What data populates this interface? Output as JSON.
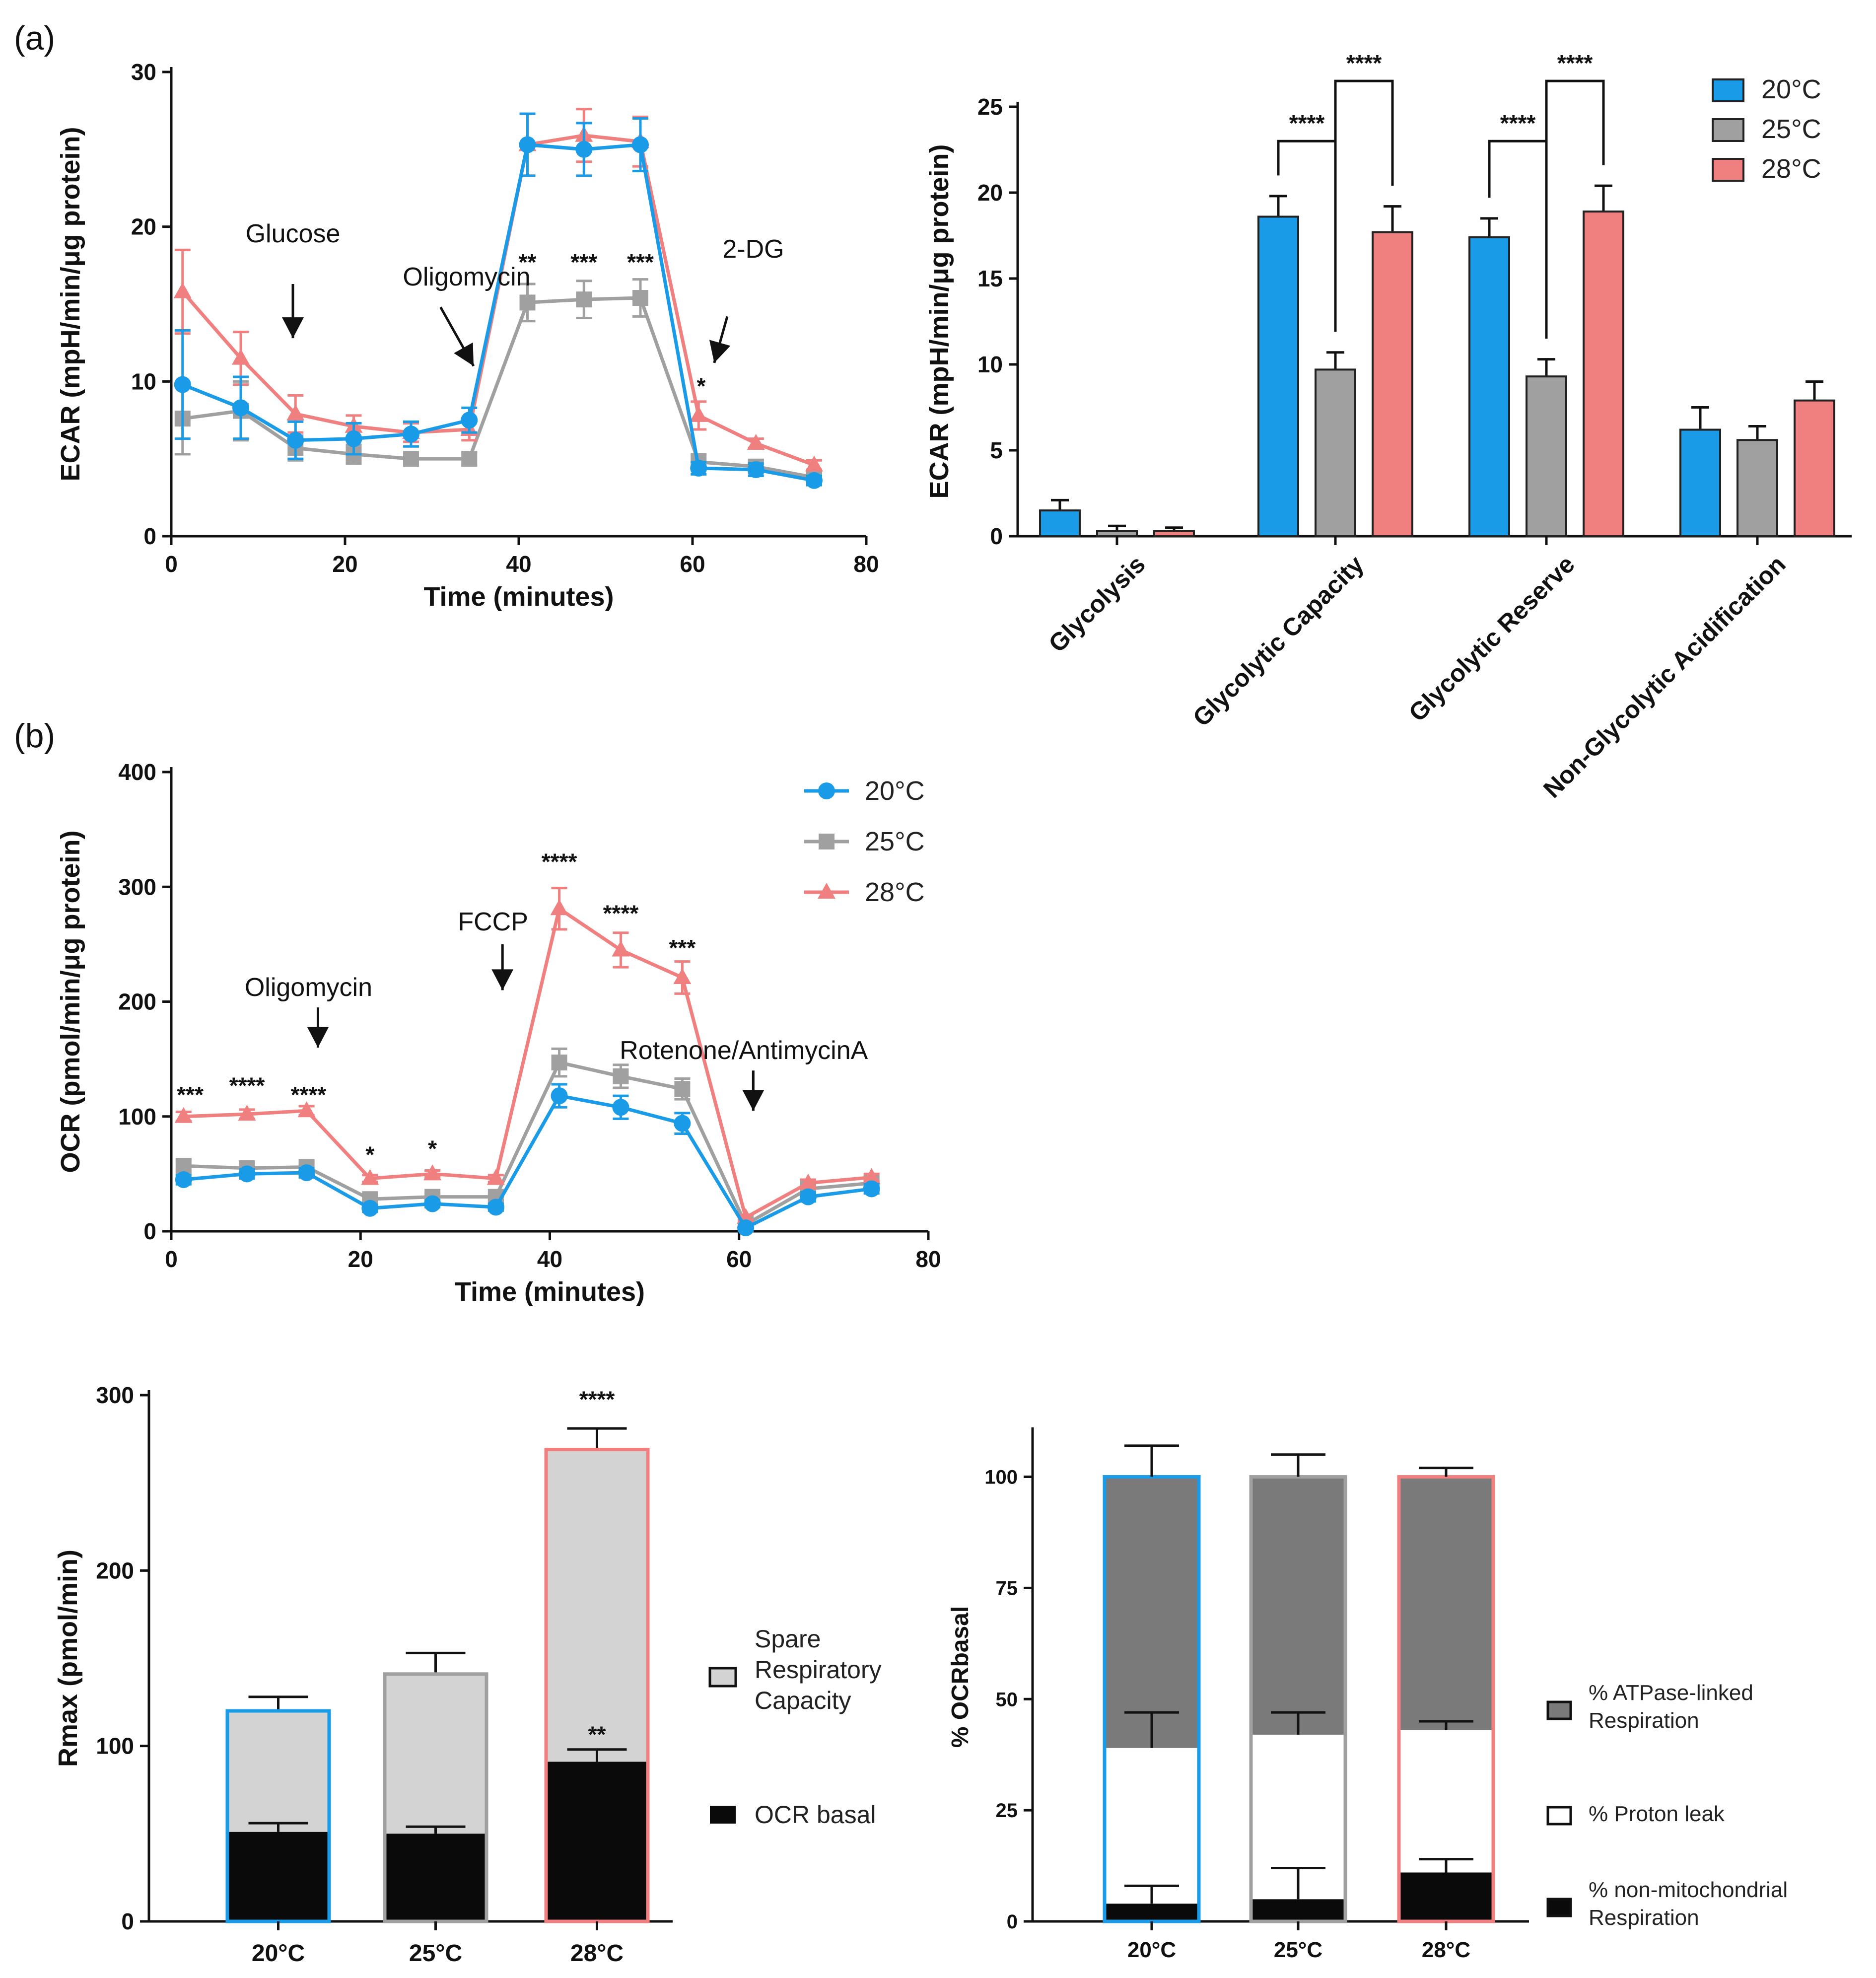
{
  "panel_labels": {
    "a": "(a)",
    "b": "(b)"
  },
  "colors": {
    "t20": "#1a9be8",
    "t25": "#a0a0a0",
    "t28": "#f08080",
    "black": "#0a0a0a",
    "light": "#d3d3d3",
    "dark": "#7a7a7a"
  },
  "legend": {
    "t20": "20°C",
    "t25": "25°C",
    "t28": "28°C"
  },
  "chart_data": [
    {
      "id": "ecar_time",
      "type": "line",
      "title": "",
      "xlabel": "Time (minutes)",
      "ylabel": "ECAR (mpH/min/μg protein)",
      "xlim": [
        0,
        80
      ],
      "ylim": [
        0,
        30
      ],
      "xticks": [
        0,
        20,
        40,
        60,
        80
      ],
      "yticks": [
        0,
        10,
        20,
        30
      ],
      "x": [
        1.3,
        8,
        14.3,
        21,
        27.6,
        34.3,
        41,
        47.5,
        54,
        60.7,
        67.3,
        74
      ],
      "series": [
        {
          "name": "20°C",
          "values": [
            9.8,
            8.3,
            6.2,
            6.3,
            6.6,
            7.5,
            25.3,
            25,
            25.3,
            4.4,
            4.3,
            3.6
          ],
          "errors": [
            3.5,
            2,
            1.2,
            1,
            0.8,
            0.8,
            2,
            1.7,
            1.7,
            0.4,
            0.4,
            0.3
          ]
        },
        {
          "name": "25°C",
          "values": [
            7.6,
            8.1,
            5.7,
            5.3,
            5,
            5,
            15.1,
            15.3,
            15.4,
            4.8,
            4.5,
            3.8
          ],
          "errors": [
            2.3,
            1.9,
            0.8,
            0.6,
            0.4,
            0.4,
            1.2,
            1.2,
            1.2,
            0.5,
            0.4,
            0.3
          ]
        },
        {
          "name": "28°C",
          "values": [
            15.8,
            11.5,
            7.9,
            7.1,
            6.7,
            6.9,
            25.3,
            25.9,
            25.5,
            7.8,
            6,
            4.6
          ],
          "errors": [
            2.7,
            1.7,
            1.2,
            0.7,
            0.6,
            0.7,
            2,
            1.7,
            1.6,
            0.9,
            0.3,
            0.3
          ]
        }
      ],
      "annotations": [
        {
          "text": "Glucose",
          "x": 14,
          "y": 19
        },
        {
          "text": "Oligomycin",
          "x": 34,
          "y": 16.2
        },
        {
          "text": "2-DG",
          "x": 67,
          "y": 18
        }
      ],
      "significance": [
        {
          "text": "**",
          "x": 41,
          "y": 17.2
        },
        {
          "text": "***",
          "x": 47.5,
          "y": 17.2
        },
        {
          "text": "***",
          "x": 54,
          "y": 17.2
        },
        {
          "text": "*",
          "x": 61,
          "y": 9.2
        }
      ]
    },
    {
      "id": "ecar_bars",
      "type": "bar",
      "title": "",
      "xlabel": "",
      "ylabel": "ECAR (mpH/min/μg protein)",
      "ylim": [
        0,
        25
      ],
      "yticks": [
        0,
        5,
        10,
        15,
        20,
        25
      ],
      "categories": [
        "Glycolysis",
        "Glycolytic Capacity",
        "Glycolytic Reserve",
        "Non-Glycolytic Acidification"
      ],
      "series": [
        {
          "name": "20°C",
          "values": [
            1.5,
            18.6,
            17.4,
            6.2
          ],
          "errors": [
            0.6,
            1.2,
            1.1,
            1.3
          ]
        },
        {
          "name": "25°C",
          "values": [
            0.3,
            9.7,
            9.3,
            5.6
          ],
          "errors": [
            0.3,
            1,
            1,
            0.8
          ]
        },
        {
          "name": "28°C",
          "values": [
            0.3,
            17.7,
            18.9,
            7.9
          ],
          "errors": [
            0.2,
            1.5,
            1.5,
            1.1
          ]
        }
      ],
      "legend_position": "top-right",
      "brackets": [
        {
          "category": 1,
          "from": 0,
          "to": 1,
          "text": "****",
          "y": 23
        },
        {
          "category": 1,
          "from": 1,
          "to": 2,
          "text": "****",
          "y": 26.5
        },
        {
          "category": 2,
          "from": 0,
          "to": 1,
          "text": "****",
          "y": 23
        },
        {
          "category": 2,
          "from": 1,
          "to": 2,
          "text": "****",
          "y": 26.5
        }
      ]
    },
    {
      "id": "ocr_time",
      "type": "line",
      "title": "",
      "xlabel": "Time (minutes)",
      "ylabel": "OCR (pmol/min/μg protein)",
      "xlim": [
        0,
        80
      ],
      "ylim": [
        0,
        400
      ],
      "xticks": [
        0,
        20,
        40,
        60,
        80
      ],
      "yticks": [
        0,
        100,
        200,
        300,
        400
      ],
      "x": [
        1.3,
        8,
        14.3,
        21,
        27.6,
        34.3,
        41,
        47.5,
        54,
        60.7,
        67.3,
        74
      ],
      "series": [
        {
          "name": "20°C",
          "values": [
            45,
            50,
            51,
            20,
            24,
            21,
            118,
            108,
            94,
            3,
            30,
            37
          ],
          "errors": [
            4,
            4,
            4,
            3,
            3,
            3,
            10,
            10,
            9,
            2,
            4,
            4
          ]
        },
        {
          "name": "25°C",
          "values": [
            57,
            55,
            56,
            28,
            30,
            30,
            147,
            135,
            124,
            6,
            37,
            42
          ],
          "errors": [
            5,
            4,
            4,
            3,
            3,
            3,
            12,
            10,
            9,
            2,
            4,
            4
          ]
        },
        {
          "name": "28°C",
          "values": [
            100,
            102,
            105,
            46,
            50,
            46,
            281,
            245,
            221,
            12,
            42,
            47
          ],
          "errors": [
            4,
            4,
            4,
            3,
            3,
            3,
            18,
            15,
            14,
            2,
            3,
            3
          ]
        }
      ],
      "annotations": [
        {
          "text": "Oligomycin",
          "x": 14.5,
          "y": 205
        },
        {
          "text": "FCCP",
          "x": 34,
          "y": 262
        },
        {
          "text": "Rotenone/AntimycinA",
          "x": 60.5,
          "y": 150
        }
      ],
      "significance": [
        {
          "text": "***",
          "x": 2,
          "y": 112
        },
        {
          "text": "****",
          "x": 8,
          "y": 120
        },
        {
          "text": "****",
          "x": 14.5,
          "y": 112
        },
        {
          "text": "*",
          "x": 21,
          "y": 60
        },
        {
          "text": "*",
          "x": 27.6,
          "y": 65
        },
        {
          "text": "****",
          "x": 41,
          "y": 315
        },
        {
          "text": "****",
          "x": 47.5,
          "y": 270
        },
        {
          "text": "***",
          "x": 54,
          "y": 240
        }
      ],
      "legend_position": "top-right"
    },
    {
      "id": "rmax_stacked",
      "type": "bar",
      "title": "",
      "xlabel": "",
      "ylabel": "Rmax (pmol/min)",
      "ylim": [
        0,
        300
      ],
      "yticks": [
        0,
        100,
        200,
        300
      ],
      "categories": [
        "20°C",
        "25°C",
        "28°C"
      ],
      "series": [
        {
          "name": "OCR basal",
          "values": [
            51,
            50,
            91
          ],
          "errors": [
            5,
            4,
            7
          ]
        },
        {
          "name": "Spare Respiratory Capacity",
          "values": [
            69,
            91,
            178
          ],
          "errors": [
            8,
            12,
            12
          ]
        }
      ],
      "legend": [
        "Spare Respiratory Capacity",
        "OCR basal"
      ],
      "significance": [
        {
          "text": "****",
          "category": 2,
          "y": 293
        },
        {
          "text": "**",
          "category": 2,
          "y": 102
        }
      ]
    },
    {
      "id": "ocr_percent",
      "type": "bar",
      "title": "",
      "xlabel": "",
      "ylabel": "% OCRbasal",
      "ylim": [
        0,
        110
      ],
      "yticks": [
        0,
        25,
        50,
        75,
        100
      ],
      "categories": [
        "20°C",
        "25°C",
        "28°C"
      ],
      "series": [
        {
          "name": "% non-mitochondrial Respiration",
          "values": [
            4,
            5,
            11
          ],
          "errors": [
            4,
            7,
            3
          ]
        },
        {
          "name": "% Proton leak",
          "values": [
            35,
            37,
            32
          ],
          "errors": [
            8,
            5,
            2
          ]
        },
        {
          "name": "% ATPase-linked Respiration",
          "values": [
            61,
            58,
            57
          ],
          "errors": [
            7,
            5,
            2
          ]
        }
      ],
      "legend": [
        "% ATPase-linked Respiration",
        "% Proton leak",
        "% non-mitochondrial Respiration"
      ]
    }
  ]
}
